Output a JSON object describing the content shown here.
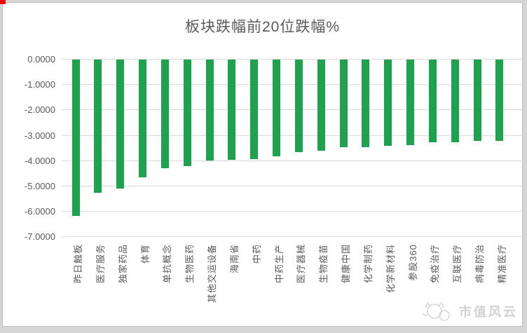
{
  "chart_data": {
    "type": "bar",
    "title": "板块跌幅前20位跌幅%",
    "categories": [
      "昨日触板",
      "医疗服务",
      "独家药品",
      "体育",
      "单抗概念",
      "生物医药",
      "其他交运设备",
      "海南省",
      "中药",
      "中药生产",
      "医疗器械",
      "生物疫苗",
      "健康中国",
      "化学制药",
      "化学新材料",
      "参股360",
      "免疫治疗",
      "互联医疗",
      "病毒防治",
      "精准医疗"
    ],
    "values": [
      -6.15,
      -5.25,
      -5.08,
      -4.63,
      -4.27,
      -4.21,
      -3.98,
      -3.95,
      -3.93,
      -3.81,
      -3.65,
      -3.58,
      -3.46,
      -3.44,
      -3.41,
      -3.38,
      -3.27,
      -3.25,
      -3.21,
      -3.2
    ],
    "xlabel": "",
    "ylabel": "",
    "ylim": [
      -7,
      0
    ],
    "ytick_labels": [
      "0.0000",
      "-1.0000",
      "-2.0000",
      "-3.0000",
      "-4.0000",
      "-5.0000",
      "-6.0000",
      "-7.0000"
    ],
    "grid": true,
    "legend": "none",
    "bar_color": "#1fa24d",
    "axis_text_color": "#595959",
    "gridline_color": "#d9d9d9"
  },
  "watermark": {
    "text": "市值风云",
    "logo": "cat-logo"
  },
  "frame": {
    "background": "#d5d5d5",
    "card_background": "#ffffff",
    "corner_marker_color": "#ff0000"
  }
}
